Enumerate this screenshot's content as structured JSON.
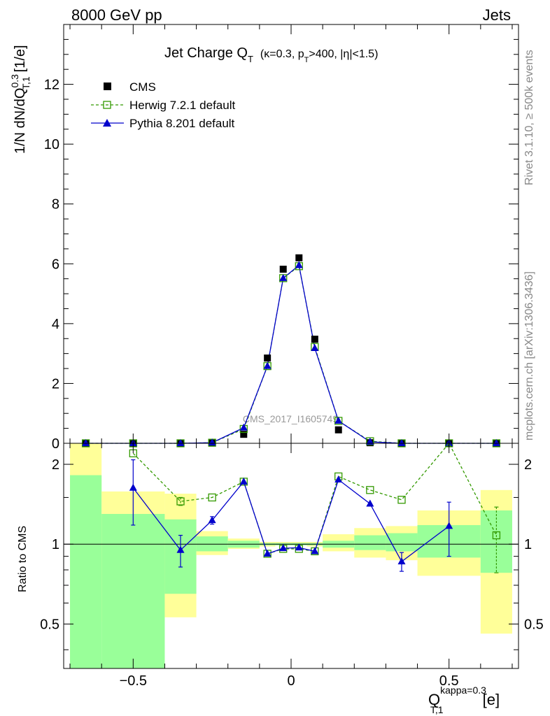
{
  "header": {
    "left": "8000 GeV pp",
    "right": "Jets"
  },
  "title": {
    "main": "Jet Charge Q",
    "main_sub": "T",
    "cuts": {
      "k": "(κ=0.3, p",
      "pt_sub": "T",
      "rest": ">400, |η|<1.5)"
    }
  },
  "side_labels": {
    "rivet": "Rivet 3.1.10, ≥ 500k events",
    "mcplots": "mcplots.cern.ch [arXiv:1306.3436]"
  },
  "watermark": "CMS_2017_I1605749",
  "y_label_main": {
    "prefix": "1/N dN/dQ",
    "sup": "0.3",
    "sub": "T,1",
    "suffix": "[1/e]"
  },
  "y_label_ratio": "Ratio to CMS",
  "x_label": {
    "q": "Q",
    "sup": "kappa=0.3",
    "sub": "T,1",
    "unit": "[e]"
  },
  "legend": [
    {
      "label": "CMS"
    },
    {
      "label": "Herwig 7.2.1 default"
    },
    {
      "label": "Pythia 8.201 default"
    }
  ],
  "colors": {
    "data": "#000000",
    "herwig": "#339900",
    "pythia": "#0000cc",
    "band_inner": "#99ff99",
    "band_outer": "#ffff99"
  },
  "chart_data": {
    "type": "line",
    "xlim": [
      -0.72,
      0.72
    ],
    "main_ylim": [
      0,
      14
    ],
    "main_yticks": [
      0,
      2,
      4,
      6,
      8,
      10,
      12
    ],
    "main_yticklabels": [
      "0",
      "2",
      "4",
      "6",
      "8",
      "10",
      "12"
    ],
    "ratio_ylim": [
      0.34,
      2.4
    ],
    "ratio_scale": "log",
    "ratio_yticks": [
      0.5,
      1,
      2
    ],
    "ratio_yticklabels": [
      "0.5",
      "1",
      "2"
    ],
    "xticks": [
      -0.5,
      0,
      0.5
    ],
    "xticklabels": [
      "−0.5",
      "0",
      "0.5"
    ],
    "bin_edges": [
      -0.7,
      -0.6,
      -0.4,
      -0.3,
      -0.2,
      -0.1,
      -0.05,
      0,
      0.05,
      0.1,
      0.2,
      0.3,
      0.4,
      0.6,
      0.7
    ],
    "x": [
      -0.65,
      -0.5,
      -0.35,
      -0.25,
      -0.15,
      -0.075,
      -0.025,
      0.025,
      0.075,
      0.15,
      0.25,
      0.35,
      0.5,
      0.65
    ],
    "series": [
      {
        "name": "CMS",
        "values": [
          0.0,
          0.0,
          0.0,
          0.01,
          0.3,
          2.85,
          5.82,
          6.2,
          3.48,
          0.45,
          0.02,
          0.0,
          0.0,
          0.0
        ]
      },
      {
        "name": "Herwig 7.2.1 default",
        "values": [
          0.0,
          0.0,
          0.0,
          0.02,
          0.48,
          2.58,
          5.52,
          5.92,
          3.22,
          0.75,
          0.07,
          0.0,
          0.0,
          0.0
        ],
        "ratio": [
          null,
          2.2,
          1.45,
          1.5,
          1.72,
          0.92,
          0.96,
          0.96,
          0.94,
          1.8,
          1.6,
          1.47,
          2.5,
          1.08
        ],
        "ratio_err": [
          null,
          null,
          0.05,
          null,
          null,
          null,
          null,
          null,
          null,
          null,
          null,
          null,
          null,
          0.3
        ]
      },
      {
        "name": "Pythia 8.201 default",
        "values": [
          0.0,
          0.0,
          0.0,
          0.02,
          0.52,
          2.58,
          5.52,
          5.95,
          3.18,
          0.75,
          0.05,
          0.0,
          0.0,
          0.0
        ],
        "ratio": [
          null,
          1.63,
          0.95,
          1.23,
          1.72,
          0.92,
          0.965,
          0.97,
          0.94,
          1.75,
          1.42,
          0.86,
          1.17,
          null
        ],
        "ratio_err": [
          null,
          0.45,
          0.13,
          0.04,
          null,
          null,
          null,
          null,
          null,
          null,
          null,
          0.07,
          0.27,
          null
        ]
      }
    ],
    "uncertainty_bands": {
      "inner": [
        [
          0.34,
          1.82
        ],
        [
          0.34,
          1.3
        ],
        [
          0.65,
          1.24
        ],
        [
          0.94,
          1.07
        ],
        [
          0.97,
          1.03
        ],
        [
          0.99,
          1.01
        ],
        [
          0.99,
          1.01
        ],
        [
          0.99,
          1.01
        ],
        [
          0.99,
          1.01
        ],
        [
          0.97,
          1.03
        ],
        [
          0.95,
          1.08
        ],
        [
          0.94,
          1.1
        ],
        [
          0.89,
          1.18
        ],
        [
          0.78,
          1.34
        ]
      ],
      "outer": [
        [
          0.34,
          2.4
        ],
        [
          0.51,
          1.58
        ],
        [
          0.53,
          1.55
        ],
        [
          0.91,
          1.12
        ],
        [
          0.96,
          1.05
        ],
        [
          0.98,
          1.02
        ],
        [
          0.99,
          1.02
        ],
        [
          0.99,
          1.02
        ],
        [
          0.98,
          1.02
        ],
        [
          0.94,
          1.09
        ],
        [
          0.89,
          1.15
        ],
        [
          0.87,
          1.17
        ],
        [
          0.76,
          1.34
        ],
        [
          0.46,
          1.6
        ]
      ]
    }
  }
}
